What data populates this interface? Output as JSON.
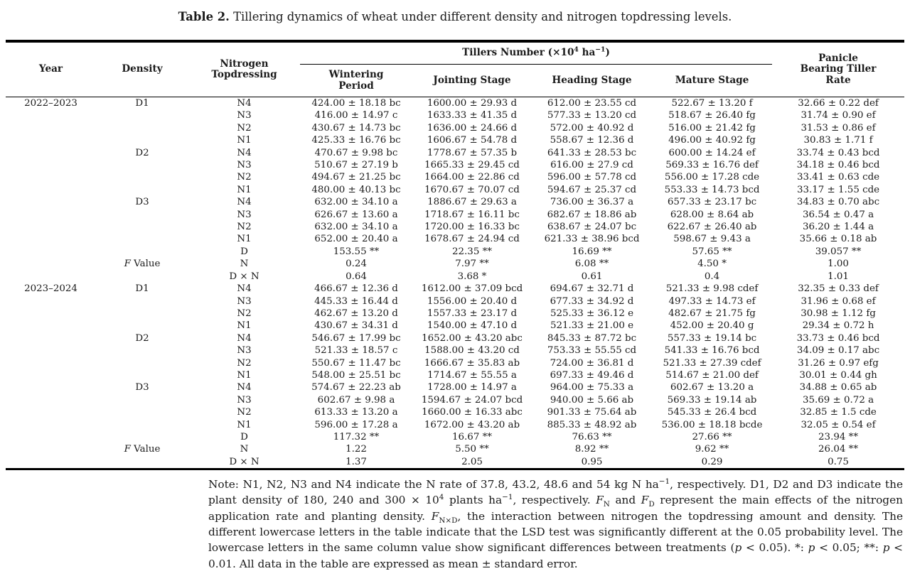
{
  "caption": {
    "label": "Table 2.",
    "text": "Tillering dynamics of wheat under different density and nitrogen topdressing levels."
  },
  "table": {
    "headers": {
      "year": "Year",
      "density": "Density",
      "nitrogen": "Nitrogen Topdressing",
      "tillers_group": [
        {
          "t": "Tillers Number (×10"
        },
        {
          "t": "4",
          "sup": true
        },
        {
          "t": " ha"
        },
        {
          "t": "−1",
          "sup": true
        },
        {
          "t": ")"
        }
      ],
      "stages": [
        "Wintering Period",
        "Jointing Stage",
        "Heading Stage",
        "Mature Stage"
      ],
      "panicle": "Panicle Bearing Tiller Rate"
    },
    "sections": [
      {
        "year": "2022–2023",
        "groups": [
          {
            "density": "D1",
            "rows": [
              {
                "n": "N4",
                "values": [
                  "424.00 ± 18.18 bc",
                  "1600.00 ± 29.93 d",
                  "612.00 ± 23.55 cd",
                  "522.67 ± 13.20 f",
                  "32.66 ± 0.22 def"
                ]
              },
              {
                "n": "N3",
                "values": [
                  "416.00 ± 14.97 c",
                  "1633.33 ± 41.35 d",
                  "577.33 ± 13.20 cd",
                  "518.67 ± 26.40 fg",
                  "31.74 ± 0.90 ef"
                ]
              },
              {
                "n": "N2",
                "values": [
                  "430.67 ± 14.73 bc",
                  "1636.00 ± 24.66 d",
                  "572.00 ± 40.92 d",
                  "516.00 ± 21.42 fg",
                  "31.53 ± 0.86 ef"
                ]
              },
              {
                "n": "N1",
                "values": [
                  "425.33 ± 16.76 bc",
                  "1606.67 ± 54.78 d",
                  "558.67 ± 12.36 d",
                  "496.00 ± 40.92 fg",
                  "30.83 ± 1.71 f"
                ]
              }
            ]
          },
          {
            "density": "D2",
            "rows": [
              {
                "n": "N4",
                "values": [
                  "470.67 ± 9.98 bc",
                  "1778.67 ± 57.35 b",
                  "641.33 ± 28.53 bc",
                  "600.00 ± 14.24 ef",
                  "33.74 ± 0.43 bcd"
                ]
              },
              {
                "n": "N3",
                "values": [
                  "510.67 ± 27.19 b",
                  "1665.33 ± 29.45 cd",
                  "616.00 ± 27.9 cd",
                  "569.33 ± 16.76 def",
                  "34.18 ± 0.46 bcd"
                ]
              },
              {
                "n": "N2",
                "values": [
                  "494.67 ± 21.25 bc",
                  "1664.00 ± 22.86 cd",
                  "596.00 ± 57.78 cd",
                  "556.00 ± 17.28 cde",
                  "33.41 ± 0.63 cde"
                ]
              },
              {
                "n": "N1",
                "values": [
                  "480.00 ± 40.13 bc",
                  "1670.67 ± 70.07 cd",
                  "594.67 ± 25.37 cd",
                  "553.33 ± 14.73 bcd",
                  "33.17 ± 1.55 cde"
                ]
              }
            ]
          },
          {
            "density": "D3",
            "rows": [
              {
                "n": "N4",
                "values": [
                  "632.00 ± 34.10 a",
                  "1886.67 ± 29.63 a",
                  "736.00 ± 36.37 a",
                  "657.33 ± 23.17 bc",
                  "34.83 ± 0.70 abc"
                ]
              },
              {
                "n": "N3",
                "values": [
                  "626.67 ± 13.60 a",
                  "1718.67 ± 16.11 bc",
                  "682.67 ± 18.86 ab",
                  "628.00 ± 8.64 ab",
                  "36.54 ± 0.47 a"
                ]
              },
              {
                "n": "N2",
                "values": [
                  "632.00 ± 34.10 a",
                  "1720.00 ± 16.33 bc",
                  "638.67 ± 24.07 bc",
                  "622.67 ± 26.40 ab",
                  "36.20 ± 1.44 a"
                ]
              },
              {
                "n": "N1",
                "values": [
                  "652.00 ± 20.40 a",
                  "1678.67 ± 24.94 cd",
                  "621.33 ± 38.96 bcd",
                  "598.67 ± 9.43 a",
                  "35.66 ± 0.18 ab"
                ]
              }
            ]
          }
        ],
        "fvalue": {
          "label": [
            {
              "t": "F",
              "i": true
            },
            {
              "t": " Value"
            }
          ],
          "rows": [
            {
              "factor": "D",
              "values": [
                "153.55 **",
                "22.35 **",
                "16.69 **",
                "57.65 **",
                "39.057 **"
              ]
            },
            {
              "factor": "N",
              "values": [
                "0.24",
                "7.97 **",
                "6.08 **",
                "4.50 *",
                "1.00"
              ]
            },
            {
              "factor": "D × N",
              "values": [
                "0.64",
                "3.68 *",
                "0.61",
                "0.4",
                "1.01"
              ]
            }
          ]
        }
      },
      {
        "year": "2023–2024",
        "groups": [
          {
            "density": "D1",
            "rows": [
              {
                "n": "N4",
                "values": [
                  "466.67 ± 12.36 d",
                  "1612.00 ± 37.09 bcd",
                  "694.67 ± 32.71 d",
                  "521.33 ± 9.98 cdef",
                  "32.35 ± 0.33 def"
                ]
              },
              {
                "n": "N3",
                "values": [
                  "445.33 ± 16.44 d",
                  "1556.00 ± 20.40 d",
                  "677.33 ± 34.92 d",
                  "497.33 ± 14.73 ef",
                  "31.96 ± 0.68 ef"
                ]
              },
              {
                "n": "N2",
                "values": [
                  "462.67 ± 13.20 d",
                  "1557.33 ± 23.17 d",
                  "525.33 ± 36.12 e",
                  "482.67 ± 21.75 fg",
                  "30.98 ± 1.12 fg"
                ]
              },
              {
                "n": "N1",
                "values": [
                  "430.67 ± 34.31 d",
                  "1540.00 ± 47.10 d",
                  "521.33 ± 21.00 e",
                  "452.00 ± 20.40 g",
                  "29.34 ± 0.72 h"
                ]
              }
            ]
          },
          {
            "density": "D2",
            "rows": [
              {
                "n": "N4",
                "values": [
                  "546.67 ± 17.99 bc",
                  "1652.00 ± 43.20 abc",
                  "845.33 ± 87.72 bc",
                  "557.33 ± 19.14 bc",
                  "33.73 ± 0.46 bcd"
                ]
              },
              {
                "n": "N3",
                "values": [
                  "521.33 ± 18.57 c",
                  "1588.00 ± 43.20 cd",
                  "753.33 ± 55.55 cd",
                  "541.33 ± 16.76 bcd",
                  "34.09 ± 0.17 abc"
                ]
              },
              {
                "n": "N2",
                "values": [
                  "550.67 ± 11.47 bc",
                  "1666.67 ± 35.83 ab",
                  "724.00 ± 36.81 d",
                  "521.33 ± 27.39 cdef",
                  "31.26 ± 0.97 efg"
                ]
              },
              {
                "n": "N1",
                "values": [
                  "548.00 ± 25.51 bc",
                  "1714.67 ± 55.55 a",
                  "697.33 ± 49.46 d",
                  "514.67 ± 21.00 def",
                  "30.01 ± 0.44 gh"
                ]
              }
            ]
          },
          {
            "density": "D3",
            "rows": [
              {
                "n": "N4",
                "values": [
                  "574.67 ± 22.23 ab",
                  "1728.00 ± 14.97 a",
                  "964.00 ± 75.33 a",
                  "602.67 ± 13.20 a",
                  "34.88 ± 0.65 ab"
                ]
              },
              {
                "n": "N3",
                "values": [
                  "602.67 ± 9.98 a",
                  "1594.67 ± 24.07 bcd",
                  "940.00 ± 5.66 ab",
                  "569.33 ± 19.14 ab",
                  "35.69 ± 0.72 a"
                ]
              },
              {
                "n": "N2",
                "values": [
                  "613.33 ± 13.20 a",
                  "1660.00 ± 16.33 abc",
                  "901.33 ± 75.64 ab",
                  "545.33 ± 26.4 bcd",
                  "32.85 ± 1.5 cde"
                ]
              },
              {
                "n": "N1",
                "values": [
                  "596.00 ± 17.28 a",
                  "1672.00 ± 43.20 ab",
                  "885.33 ± 48.92 ab",
                  "536.00 ± 18.18 bcde",
                  "32.05 ± 0.54 ef"
                ]
              }
            ]
          }
        ],
        "fvalue": {
          "label": [
            {
              "t": "F",
              "i": true
            },
            {
              "t": " Value"
            }
          ],
          "rows": [
            {
              "factor": "D",
              "values": [
                "117.32 **",
                "16.67 **",
                "76.63 **",
                "27.66 **",
                "23.94 **"
              ]
            },
            {
              "factor": "N",
              "values": [
                "1.22",
                "5.50 **",
                "8.92 **",
                "9.62 **",
                "26.04 **"
              ]
            },
            {
              "factor": "D × N",
              "values": [
                "1.37",
                "2.05",
                "0.95",
                "0.29",
                "0.75"
              ]
            }
          ]
        }
      }
    ]
  },
  "note": {
    "segments": [
      {
        "t": "Note: N1, N2, N3 and N4 indicate the N rate of 37.8, 43.2, 48.6 and 54 kg N ha"
      },
      {
        "t": "−1",
        "sup": true
      },
      {
        "t": ", respectively. D1, D2 and D3 indicate the plant density of 180, 240 and 300 × 10"
      },
      {
        "t": "4",
        "sup": true
      },
      {
        "t": " plants ha"
      },
      {
        "t": "−1",
        "sup": true
      },
      {
        "t": ", respectively. "
      },
      {
        "t": "F",
        "i": true
      },
      {
        "t": "N",
        "sub": true
      },
      {
        "t": " and "
      },
      {
        "t": "F",
        "i": true
      },
      {
        "t": "D",
        "sub": true
      },
      {
        "t": " represent the main effects of the nitrogen application rate and planting density. "
      },
      {
        "t": "F",
        "i": true
      },
      {
        "t": "N×D",
        "sub": true
      },
      {
        "t": ", the interaction between nitrogen the topdressing amount and density. The different lowercase letters in the table indicate that the LSD test was significantly different at the 0.05 probability level. The lowercase letters in the same column value show significant differences between treatments ("
      },
      {
        "t": "p",
        "i": true
      },
      {
        "t": " < 0.05). *: "
      },
      {
        "t": "p",
        "i": true
      },
      {
        "t": " < 0.05; **: "
      },
      {
        "t": "p",
        "i": true
      },
      {
        "t": " < 0.01. All data in the table are expressed as mean ± standard error."
      }
    ]
  }
}
